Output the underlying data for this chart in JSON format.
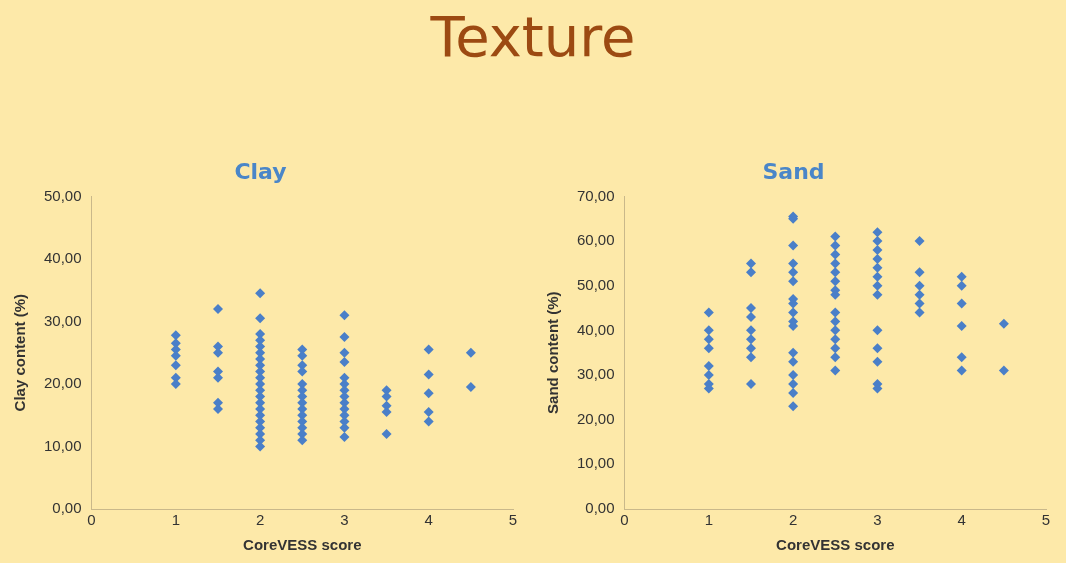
{
  "chart_data": [
    {
      "type": "scatter",
      "title": "Clay",
      "xlabel": "CoreVESS score",
      "ylabel": "Clay content (%)",
      "annotations": [
        "Texture"
      ],
      "marker": "diamond",
      "grid": false,
      "legend": false,
      "xlim": [
        0,
        5
      ],
      "xticks": [
        0,
        1,
        2,
        3,
        4,
        5
      ],
      "ylim": [
        0,
        50
      ],
      "yticks": [
        {
          "value": 0,
          "label": "0,00"
        },
        {
          "value": 10,
          "label": "10,00"
        },
        {
          "value": 20,
          "label": "20,00"
        },
        {
          "value": 30,
          "label": "30,00"
        },
        {
          "value": 40,
          "label": "40,00"
        },
        {
          "value": 50,
          "label": "50,00"
        }
      ],
      "series": [
        {
          "color": "#4a7fc8",
          "x": [
            1,
            1,
            1,
            1,
            1,
            1,
            1,
            1.5,
            1.5,
            1.5,
            1.5,
            1.5,
            1.5,
            1.5,
            2,
            2,
            2,
            2,
            2,
            2,
            2,
            2,
            2,
            2,
            2,
            2,
            2,
            2,
            2,
            2,
            2,
            2,
            2,
            2,
            2,
            2.5,
            2.5,
            2.5,
            2.5,
            2.5,
            2.5,
            2.5,
            2.5,
            2.5,
            2.5,
            2.5,
            2.5,
            2.5,
            2.5,
            3,
            3,
            3,
            3,
            3,
            3,
            3,
            3,
            3,
            3,
            3,
            3,
            3,
            3,
            3.5,
            3.5,
            3.5,
            3.5,
            3.5,
            4,
            4,
            4,
            4,
            4,
            4.5,
            4.5
          ],
          "values": [
            27.8,
            26.5,
            25.5,
            24.5,
            23,
            21,
            20,
            32,
            26,
            25,
            22,
            21,
            17,
            16,
            34.5,
            30.5,
            28,
            27,
            26,
            25,
            24,
            23,
            22,
            21,
            20,
            19,
            18,
            17,
            16,
            15,
            14,
            13,
            12,
            11,
            10,
            25.5,
            24.5,
            23,
            22,
            20,
            19,
            18,
            17,
            16,
            15,
            14,
            13,
            12,
            11,
            31,
            27.5,
            25,
            23.5,
            21,
            20,
            19,
            18,
            17,
            16,
            15,
            14,
            13,
            11.5,
            19,
            18,
            16.5,
            15.5,
            12,
            25.5,
            21.5,
            18.5,
            15.5,
            14,
            25,
            19.5
          ]
        }
      ]
    },
    {
      "type": "scatter",
      "title": "Sand",
      "xlabel": "CoreVESS score",
      "ylabel": "Sand content (%)",
      "marker": "diamond",
      "grid": false,
      "legend": false,
      "xlim": [
        0,
        5
      ],
      "xticks": [
        0,
        1,
        2,
        3,
        4,
        5
      ],
      "ylim": [
        0,
        70
      ],
      "yticks": [
        {
          "value": 0,
          "label": "0,00"
        },
        {
          "value": 10,
          "label": "10,00"
        },
        {
          "value": 20,
          "label": "20,00"
        },
        {
          "value": 30,
          "label": "30,00"
        },
        {
          "value": 40,
          "label": "40,00"
        },
        {
          "value": 50,
          "label": "50,00"
        },
        {
          "value": 60,
          "label": "60,00"
        },
        {
          "value": 70,
          "label": "70,00"
        }
      ],
      "series": [
        {
          "color": "#4a7fc8",
          "x": [
            1,
            1,
            1,
            1,
            1,
            1,
            1,
            1,
            1.5,
            1.5,
            1.5,
            1.5,
            1.5,
            1.5,
            1.5,
            1.5,
            1.5,
            2,
            2,
            2,
            2,
            2,
            2,
            2,
            2,
            2,
            2,
            2,
            2,
            2,
            2,
            2,
            2,
            2,
            2.5,
            2.5,
            2.5,
            2.5,
            2.5,
            2.5,
            2.5,
            2.5,
            2.5,
            2.5,
            2.5,
            2.5,
            2.5,
            2.5,
            2.5,
            3,
            3,
            3,
            3,
            3,
            3,
            3,
            3,
            3,
            3,
            3,
            3,
            3,
            3.5,
            3.5,
            3.5,
            3.5,
            3.5,
            3.5,
            4,
            4,
            4,
            4,
            4,
            4,
            4.5,
            4.5
          ],
          "values": [
            44,
            40,
            38,
            36,
            32,
            30,
            28,
            27,
            55,
            53,
            45,
            43,
            40,
            38,
            36,
            34,
            28,
            65.5,
            65,
            59,
            55,
            53,
            51,
            47,
            46,
            44,
            42,
            41,
            35,
            33,
            30,
            28,
            26,
            23,
            61,
            59,
            57,
            55,
            53,
            51,
            49,
            48,
            44,
            42,
            40,
            38,
            36,
            34,
            31,
            62,
            60,
            58,
            56,
            54,
            52,
            50,
            48,
            40,
            36,
            33,
            28,
            27,
            60,
            53,
            50,
            48,
            46,
            44,
            52,
            50,
            46,
            41,
            34,
            31,
            41.5,
            31
          ]
        }
      ]
    }
  ]
}
